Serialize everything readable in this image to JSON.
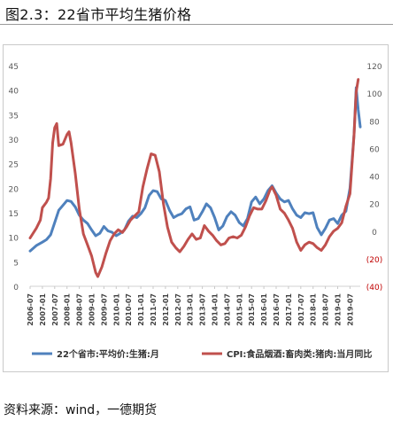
{
  "figure": {
    "title": "图2.3：22省市平均生猪价格",
    "source": "资料来源：wind，一德期货"
  },
  "colors": {
    "blue": "#4f81bd",
    "red": "#c0504d",
    "negative_label": "#c00000",
    "axis_text": "#595959"
  },
  "chart_data": {
    "type": "line",
    "title": "",
    "y_left": {
      "range": [
        0,
        45
      ],
      "ticks": [
        0,
        5,
        10,
        15,
        20,
        25,
        30,
        35,
        40,
        45
      ],
      "tick_labels": [
        "0",
        "5",
        "10",
        "15",
        "20",
        "25",
        "30",
        "35",
        "40",
        "45"
      ]
    },
    "y_right": {
      "range": [
        -40,
        120
      ],
      "ticks": [
        120,
        100,
        80,
        60,
        40,
        20,
        0,
        -20,
        -40
      ],
      "tick_labels": [
        "120",
        "100",
        "80",
        "60",
        "40",
        "20",
        "0",
        "(20)",
        "(40)"
      ]
    },
    "x_axis": {
      "range": [
        "2006-07",
        "2019-12"
      ],
      "tick_labels": [
        "2006-07",
        "2007-01",
        "2007-07",
        "2008-01",
        "2008-07",
        "2009-01",
        "2009-07",
        "2010-01",
        "2010-07",
        "2011-01",
        "2011-07",
        "2012-01",
        "2012-07",
        "2013-01",
        "2013-07",
        "2014-01",
        "2014-07",
        "2015-01",
        "2015-07",
        "2016-01",
        "2016-07",
        "2017-01",
        "2017-07",
        "2018-01",
        "2018-07",
        "2019-01",
        "2019-07"
      ]
    },
    "grid": false,
    "legend": "bottom",
    "series": [
      {
        "name": "22个省市:平均价:生猪:月",
        "axis": "left",
        "color": "#4f81bd",
        "points": [
          [
            "2006-07",
            7.2
          ],
          [
            "2006-10",
            8.3
          ],
          [
            "2007-01",
            9.0
          ],
          [
            "2007-03",
            9.5
          ],
          [
            "2007-05",
            10.5
          ],
          [
            "2007-07",
            13.0
          ],
          [
            "2007-09",
            15.5
          ],
          [
            "2007-11",
            16.5
          ],
          [
            "2008-01",
            17.5
          ],
          [
            "2008-03",
            17.3
          ],
          [
            "2008-05",
            16.2
          ],
          [
            "2008-07",
            14.5
          ],
          [
            "2008-09",
            13.5
          ],
          [
            "2008-11",
            12.8
          ],
          [
            "2009-01",
            11.5
          ],
          [
            "2009-03",
            10.3
          ],
          [
            "2009-05",
            10.8
          ],
          [
            "2009-07",
            12.2
          ],
          [
            "2009-09",
            11.3
          ],
          [
            "2009-11",
            11.0
          ],
          [
            "2010-01",
            10.3
          ],
          [
            "2010-03",
            10.8
          ],
          [
            "2010-05",
            11.5
          ],
          [
            "2010-07",
            13.3
          ],
          [
            "2010-09",
            14.3
          ],
          [
            "2010-11",
            14.0
          ],
          [
            "2011-01",
            14.8
          ],
          [
            "2011-03",
            16.0
          ],
          [
            "2011-05",
            18.5
          ],
          [
            "2011-07",
            19.5
          ],
          [
            "2011-09",
            19.3
          ],
          [
            "2011-11",
            17.8
          ],
          [
            "2012-01",
            17.5
          ],
          [
            "2012-03",
            15.5
          ],
          [
            "2012-05",
            14.0
          ],
          [
            "2012-07",
            14.5
          ],
          [
            "2012-09",
            14.8
          ],
          [
            "2012-11",
            15.8
          ],
          [
            "2013-01",
            16.2
          ],
          [
            "2013-03",
            13.5
          ],
          [
            "2013-05",
            13.8
          ],
          [
            "2013-07",
            15.2
          ],
          [
            "2013-09",
            16.8
          ],
          [
            "2013-11",
            16.0
          ],
          [
            "2014-01",
            14.0
          ],
          [
            "2014-03",
            11.5
          ],
          [
            "2014-05",
            12.3
          ],
          [
            "2014-07",
            14.2
          ],
          [
            "2014-09",
            15.2
          ],
          [
            "2014-11",
            14.5
          ],
          [
            "2015-01",
            13.0
          ],
          [
            "2015-03",
            12.3
          ],
          [
            "2015-05",
            13.8
          ],
          [
            "2015-07",
            17.2
          ],
          [
            "2015-09",
            18.2
          ],
          [
            "2015-11",
            16.8
          ],
          [
            "2016-01",
            17.8
          ],
          [
            "2016-03",
            19.5
          ],
          [
            "2016-05",
            20.5
          ],
          [
            "2016-07",
            19.0
          ],
          [
            "2016-09",
            17.8
          ],
          [
            "2016-11",
            17.2
          ],
          [
            "2017-01",
            17.5
          ],
          [
            "2017-03",
            15.8
          ],
          [
            "2017-05",
            14.5
          ],
          [
            "2017-07",
            14.0
          ],
          [
            "2017-09",
            15.0
          ],
          [
            "2017-11",
            14.8
          ],
          [
            "2018-01",
            15.0
          ],
          [
            "2018-03",
            12.0
          ],
          [
            "2018-05",
            10.5
          ],
          [
            "2018-07",
            11.8
          ],
          [
            "2018-09",
            13.5
          ],
          [
            "2018-11",
            13.8
          ],
          [
            "2019-01",
            12.8
          ],
          [
            "2019-03",
            14.5
          ],
          [
            "2019-05",
            15.3
          ],
          [
            "2019-07",
            20.0
          ],
          [
            "2019-09",
            31.0
          ],
          [
            "2019-10",
            40.5
          ],
          [
            "2019-11",
            36.0
          ],
          [
            "2019-12",
            32.5
          ]
        ]
      },
      {
        "name": "CPI:食品烟酒:畜肉类:猪肉:当月同比",
        "axis": "right",
        "color": "#c0504d",
        "points": [
          [
            "2006-07",
            -5.0
          ],
          [
            "2006-10",
            2.0
          ],
          [
            "2006-12",
            8.0
          ],
          [
            "2007-01",
            17.0
          ],
          [
            "2007-03",
            21.0
          ],
          [
            "2007-04",
            24.0
          ],
          [
            "2007-05",
            38.0
          ],
          [
            "2007-06",
            64.0
          ],
          [
            "2007-07",
            75.0
          ],
          [
            "2007-08",
            78.0
          ],
          [
            "2007-09",
            62.0
          ],
          [
            "2007-11",
            63.0
          ],
          [
            "2008-01",
            70.0
          ],
          [
            "2008-02",
            72.0
          ],
          [
            "2008-03",
            64.0
          ],
          [
            "2008-05",
            42.0
          ],
          [
            "2008-07",
            16.0
          ],
          [
            "2008-09",
            -2.0
          ],
          [
            "2008-11",
            -10.0
          ],
          [
            "2009-01",
            -18.0
          ],
          [
            "2009-03",
            -30.0
          ],
          [
            "2009-04",
            -33.0
          ],
          [
            "2009-06",
            -26.0
          ],
          [
            "2009-08",
            -16.0
          ],
          [
            "2009-10",
            -7.0
          ],
          [
            "2009-12",
            -2.0
          ],
          [
            "2010-02",
            1.0
          ],
          [
            "2010-04",
            -1.0
          ],
          [
            "2010-06",
            3.0
          ],
          [
            "2010-08",
            8.0
          ],
          [
            "2010-10",
            11.0
          ],
          [
            "2010-12",
            14.0
          ],
          [
            "2011-02",
            32.0
          ],
          [
            "2011-04",
            45.0
          ],
          [
            "2011-06",
            56.0
          ],
          [
            "2011-08",
            55.0
          ],
          [
            "2011-10",
            43.0
          ],
          [
            "2011-12",
            20.0
          ],
          [
            "2012-02",
            3.0
          ],
          [
            "2012-04",
            -8.0
          ],
          [
            "2012-06",
            -12.0
          ],
          [
            "2012-08",
            -15.0
          ],
          [
            "2012-10",
            -11.0
          ],
          [
            "2012-12",
            -6.0
          ],
          [
            "2013-02",
            -2.0
          ],
          [
            "2013-04",
            -6.0
          ],
          [
            "2013-06",
            -5.0
          ],
          [
            "2013-08",
            4.0
          ],
          [
            "2013-10",
            0.0
          ],
          [
            "2013-12",
            -3.0
          ],
          [
            "2014-02",
            -7.0
          ],
          [
            "2014-04",
            -10.0
          ],
          [
            "2014-06",
            -9.0
          ],
          [
            "2014-08",
            -5.0
          ],
          [
            "2014-10",
            -4.0
          ],
          [
            "2014-12",
            -5.0
          ],
          [
            "2015-02",
            -3.0
          ],
          [
            "2015-04",
            3.0
          ],
          [
            "2015-06",
            11.0
          ],
          [
            "2015-08",
            17.0
          ],
          [
            "2015-10",
            16.0
          ],
          [
            "2015-12",
            16.0
          ],
          [
            "2016-02",
            22.0
          ],
          [
            "2016-04",
            30.0
          ],
          [
            "2016-05",
            32.0
          ],
          [
            "2016-07",
            26.0
          ],
          [
            "2016-09",
            16.0
          ],
          [
            "2016-11",
            13.0
          ],
          [
            "2017-01",
            8.0
          ],
          [
            "2017-03",
            2.0
          ],
          [
            "2017-05",
            -8.0
          ],
          [
            "2017-07",
            -14.0
          ],
          [
            "2017-09",
            -10.0
          ],
          [
            "2017-11",
            -8.0
          ],
          [
            "2018-01",
            -9.0
          ],
          [
            "2018-03",
            -12.0
          ],
          [
            "2018-05",
            -14.0
          ],
          [
            "2018-07",
            -10.0
          ],
          [
            "2018-09",
            -4.0
          ],
          [
            "2018-11",
            0.0
          ],
          [
            "2019-01",
            2.0
          ],
          [
            "2019-03",
            6.0
          ],
          [
            "2019-05",
            18.0
          ],
          [
            "2019-07",
            27.0
          ],
          [
            "2019-09",
            70.0
          ],
          [
            "2019-10",
            101.0
          ],
          [
            "2019-11",
            110.0
          ]
        ]
      }
    ]
  }
}
